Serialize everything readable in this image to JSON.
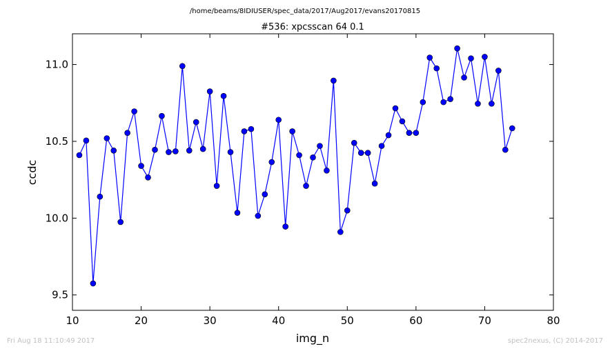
{
  "header": {
    "path": "/home/beams/8IDIUSER/spec_data/2017/Aug2017/evans20170815"
  },
  "footer": {
    "timestamp": "Fri Aug 18 11:10:49 2017",
    "credit": "spec2nexus, (C) 2014-2017"
  },
  "chart_data": {
    "type": "line",
    "title": "#536: xpcsscan 64 0.1",
    "xlabel": "img_n",
    "ylabel": "ccdc",
    "xlim": [
      10,
      80
    ],
    "ylim": [
      9.4,
      11.2
    ],
    "xticks": [
      10,
      20,
      30,
      40,
      50,
      60,
      70,
      80
    ],
    "yticks": [
      9.5,
      10.0,
      10.5,
      11.0
    ],
    "ytick_labels": [
      "9.5",
      "10.0",
      "10.5",
      "11.0"
    ],
    "grid": false,
    "marker": "circle",
    "color": "#0000ff",
    "x": [
      11,
      12,
      13,
      14,
      15,
      16,
      17,
      18,
      19,
      20,
      21,
      22,
      23,
      24,
      25,
      26,
      27,
      28,
      29,
      30,
      31,
      32,
      33,
      34,
      35,
      36,
      37,
      38,
      39,
      40,
      41,
      42,
      43,
      44,
      45,
      46,
      47,
      48,
      49,
      50,
      51,
      52,
      53,
      54,
      55,
      56,
      57,
      58,
      59,
      60,
      61,
      62,
      63,
      64,
      65,
      66,
      67,
      68,
      69,
      70,
      71,
      72,
      73,
      74
    ],
    "y": [
      10.41,
      10.505,
      9.575,
      10.14,
      10.52,
      10.44,
      9.975,
      10.555,
      10.695,
      10.34,
      10.265,
      10.445,
      10.665,
      10.43,
      10.435,
      10.99,
      10.44,
      10.625,
      10.45,
      10.825,
      10.21,
      10.795,
      10.43,
      10.035,
      10.565,
      10.58,
      10.015,
      10.155,
      10.365,
      10.64,
      9.945,
      10.565,
      10.41,
      10.21,
      10.395,
      10.47,
      10.31,
      10.895,
      9.91,
      10.05,
      10.49,
      10.425,
      10.425,
      10.225,
      10.47,
      10.54,
      10.715,
      10.63,
      10.555,
      10.555,
      10.755,
      11.045,
      10.975,
      10.755,
      10.775,
      11.105,
      10.915,
      11.04,
      10.745,
      11.05,
      10.745,
      10.96,
      10.445,
      10.585
    ]
  }
}
